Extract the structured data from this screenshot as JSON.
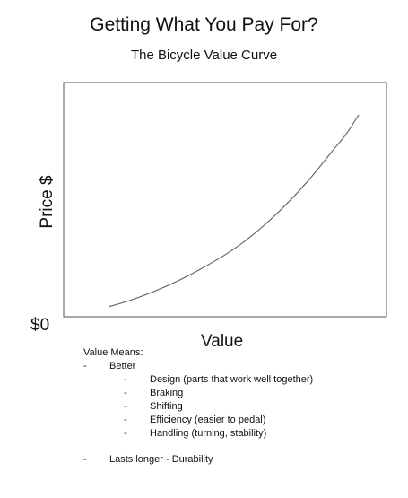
{
  "title": "Getting What You Pay For?",
  "subtitle": "The Bicycle Value Curve",
  "chart_data": {
    "type": "line",
    "title": "The Bicycle Value Curve",
    "xlabel": "Value",
    "ylabel": "Price $",
    "y_tick_labels": [
      "$0"
    ],
    "grid": false,
    "legend": "none",
    "line_color": "#5a6f86",
    "frame_color": "#41566a",
    "series": [
      {
        "x": [
          0.0,
          0.1,
          0.2,
          0.3,
          0.4,
          0.5,
          0.6,
          0.7,
          0.8,
          0.9,
          0.95,
          1.0
        ],
        "values": [
          0.0,
          0.04,
          0.09,
          0.15,
          0.22,
          0.3,
          0.4,
          0.52,
          0.66,
          0.82,
          0.9,
          1.0
        ]
      }
    ]
  },
  "notes": {
    "heading": "Value Means:",
    "better": "Better",
    "better_items": [
      "Design (parts that work well together)",
      "Braking",
      "Shifting",
      "Efficiency (easier to pedal)",
      "Handling (turning, stability)"
    ],
    "lasts_longer": "Lasts longer - Durability",
    "dash": "-"
  }
}
